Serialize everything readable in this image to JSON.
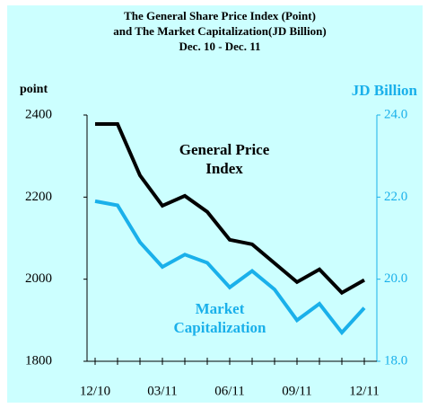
{
  "chart_data": {
    "type": "line",
    "title": [
      "The General Share Price Index (Point)",
      "and  The Market Capitalization(JD Billion)",
      "Dec. 10 - Dec. 11"
    ],
    "ylabel": "point",
    "y2label": "JD Billion",
    "categories": [
      "12/10",
      null,
      null,
      "03/11",
      null,
      null,
      "06/11",
      null,
      null,
      "09/11",
      null,
      null,
      "12/11"
    ],
    "ylim": [
      1800,
      2400
    ],
    "yticks": [
      1800,
      2000,
      2200,
      2400
    ],
    "y2lim": [
      18,
      24
    ],
    "y2ticks": [
      {
        "value": 18,
        "label": "18.0"
      },
      {
        "value": 20,
        "label": "20.0"
      },
      {
        "value": 22,
        "label": "22.0"
      },
      {
        "value": 24,
        "label": "24.0"
      }
    ],
    "series": [
      {
        "name": [
          "General  Price",
          "Index"
        ],
        "color": "#000000",
        "values": [
          2378,
          2378,
          2253,
          2179,
          2203,
          2164,
          2096,
          2085,
          2039,
          1993,
          2024,
          1967,
          1998
        ]
      },
      {
        "name": [
          "Market",
          "Capitalization"
        ],
        "color": "#1ab0ea",
        "axis": "y2",
        "values": [
          21.9,
          21.8,
          20.9,
          20.3,
          20.6,
          20.4,
          19.8,
          20.2,
          19.75,
          19.0,
          19.4,
          18.7,
          19.3
        ]
      }
    ]
  }
}
